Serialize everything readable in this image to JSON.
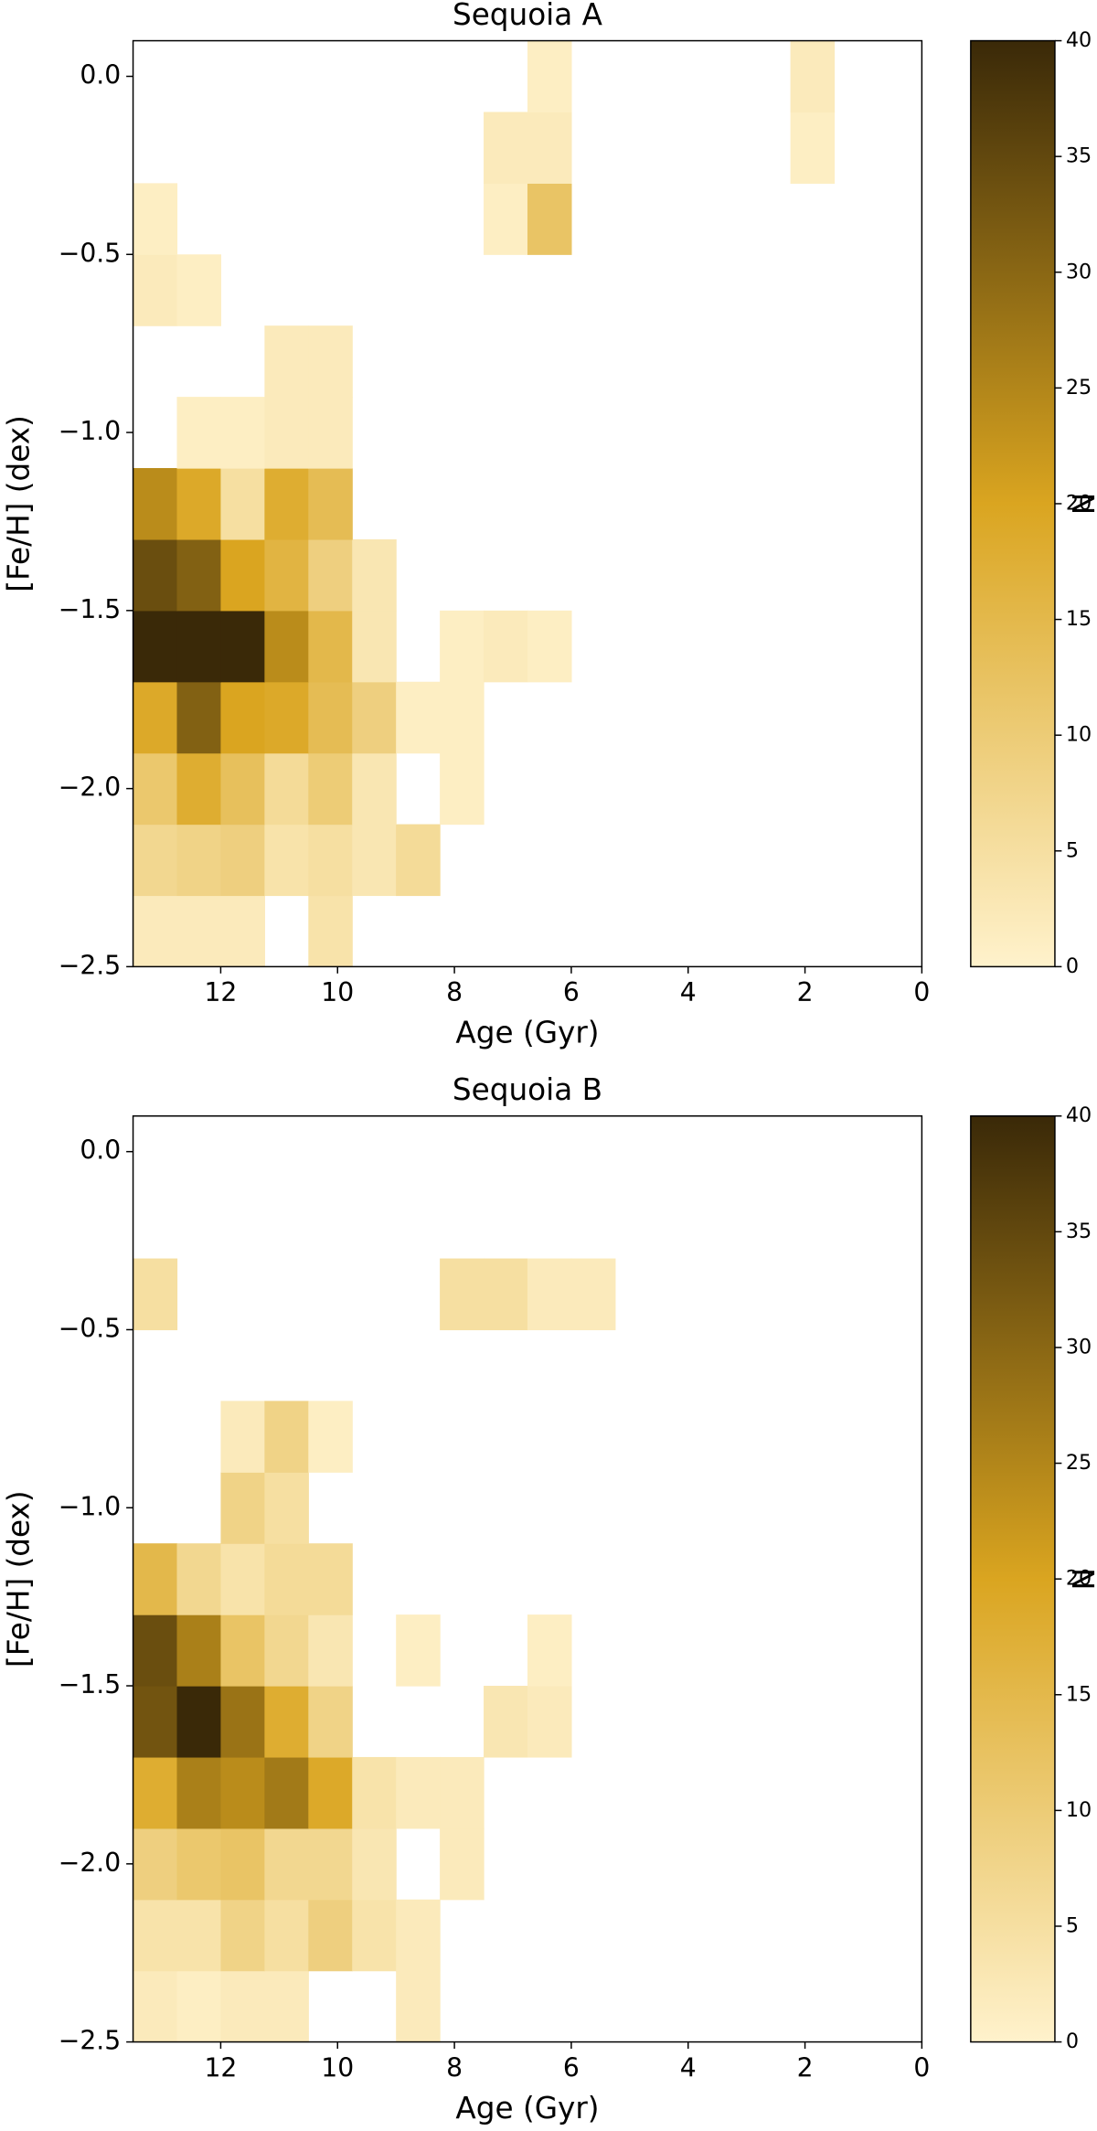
{
  "chart_data": [
    {
      "type": "heatmap",
      "title": "Sequoia A",
      "x_label": "Age (Gyr)",
      "y_label": "[Fe/H] (dex)",
      "colorbar_label": "N",
      "x_bins": [
        13.5,
        12.75,
        12,
        11.25,
        10.5,
        9.75,
        9,
        8.25,
        7.5,
        6.75,
        6,
        5.25,
        4.5,
        3.75,
        3,
        2.25,
        1.5,
        0.75,
        0
      ],
      "y_bins": [
        -2.5,
        -2.3,
        -2.1,
        -1.9,
        -1.7,
        -1.5,
        -1.3,
        -1.1,
        -0.9,
        -0.7,
        -0.5,
        -0.3,
        -0.1,
        0.1
      ],
      "z": [
        [
          2,
          2,
          2,
          0,
          4,
          0,
          0,
          0,
          0,
          0,
          0,
          0,
          0,
          0,
          0,
          0,
          0,
          0
        ],
        [
          7,
          8,
          9,
          4,
          5,
          3,
          6,
          0,
          0,
          0,
          0,
          0,
          0,
          0,
          0,
          0,
          0,
          0
        ],
        [
          11,
          18,
          13,
          6,
          10,
          3,
          0,
          1,
          0,
          0,
          0,
          0,
          0,
          0,
          0,
          0,
          0,
          0
        ],
        [
          19,
          31,
          20,
          19,
          14,
          9,
          1,
          1,
          0,
          0,
          0,
          0,
          0,
          0,
          0,
          0,
          0,
          0
        ],
        [
          40,
          40,
          40,
          24,
          15,
          3,
          0,
          1,
          2,
          1,
          0,
          0,
          0,
          0,
          0,
          0,
          0,
          0
        ],
        [
          34,
          31,
          20,
          16,
          9,
          3,
          0,
          0,
          0,
          0,
          0,
          0,
          0,
          0,
          0,
          0,
          0,
          0
        ],
        [
          24,
          19,
          5,
          18,
          14,
          0,
          0,
          0,
          0,
          0,
          0,
          0,
          0,
          0,
          0,
          0,
          0,
          0
        ],
        [
          0,
          1,
          1,
          2,
          2,
          0,
          0,
          0,
          0,
          0,
          0,
          0,
          0,
          0,
          0,
          0,
          0,
          0
        ],
        [
          0,
          0,
          0,
          2,
          2,
          0,
          0,
          0,
          0,
          0,
          0,
          0,
          0,
          0,
          0,
          0,
          0,
          0
        ],
        [
          2,
          1,
          0,
          0,
          0,
          0,
          0,
          0,
          0,
          0,
          0,
          0,
          0,
          0,
          0,
          0,
          0,
          0
        ],
        [
          1,
          0,
          0,
          0,
          0,
          0,
          0,
          0,
          1,
          12,
          0,
          0,
          0,
          0,
          0,
          0,
          0,
          0
        ],
        [
          0,
          0,
          0,
          0,
          0,
          0,
          0,
          0,
          2,
          2,
          0,
          0,
          0,
          0,
          0,
          1,
          0,
          0
        ],
        [
          0,
          0,
          0,
          0,
          0,
          0,
          0,
          0,
          0,
          1,
          0,
          0,
          0,
          0,
          0,
          2,
          0,
          0
        ]
      ],
      "xlim": [
        13.5,
        0
      ],
      "ylim": [
        -2.5,
        0.1
      ],
      "xticks": [
        12,
        10,
        8,
        6,
        4,
        2,
        0
      ],
      "yticks": [
        {
          "value": -2.5,
          "label": "−2.5"
        },
        {
          "value": -2,
          "label": "−2.0"
        },
        {
          "value": -1.5,
          "label": "−1.5"
        },
        {
          "value": -1,
          "label": "−1.0"
        },
        {
          "value": -0.5,
          "label": "−0.5"
        },
        {
          "value": 0,
          "label": "0.0"
        }
      ],
      "zlim": [
        0,
        40
      ],
      "zticks": [
        0,
        5,
        10,
        15,
        20,
        25,
        30,
        35,
        40
      ],
      "colorscale": [
        "#fff2cc",
        "#daa520",
        "#3a2908"
      ]
    },
    {
      "type": "heatmap",
      "title": "Sequoia B",
      "x_label": "Age (Gyr)",
      "y_label": "[Fe/H] (dex)",
      "colorbar_label": "N",
      "x_bins": [
        13.5,
        12.75,
        12,
        11.25,
        10.5,
        9.75,
        9,
        8.25,
        7.5,
        6.75,
        6,
        5.25,
        4.5,
        3.75,
        3,
        2.25,
        1.5,
        0.75,
        0
      ],
      "y_bins": [
        -2.5,
        -2.3,
        -2.1,
        -1.9,
        -1.7,
        -1.5,
        -1.3,
        -1.1,
        -0.9,
        -0.7,
        -0.5,
        -0.3,
        -0.1,
        0.1
      ],
      "z": [
        [
          2,
          1,
          2,
          2,
          0,
          0,
          2,
          0,
          0,
          0,
          0,
          0,
          0,
          0,
          0,
          0,
          0,
          0
        ],
        [
          4,
          4,
          8,
          5,
          9,
          4,
          2,
          0,
          0,
          0,
          0,
          0,
          0,
          0,
          0,
          0,
          0,
          0
        ],
        [
          9,
          11,
          12,
          7,
          7,
          3,
          0,
          2,
          0,
          0,
          0,
          0,
          0,
          0,
          0,
          0,
          0,
          0
        ],
        [
          18,
          26,
          24,
          27,
          19,
          4,
          2,
          2,
          0,
          0,
          0,
          0,
          0,
          0,
          0,
          0,
          0,
          0
        ],
        [
          33,
          40,
          28,
          18,
          8,
          0,
          0,
          0,
          3,
          2,
          0,
          0,
          0,
          0,
          0,
          0,
          0,
          0
        ],
        [
          34,
          26,
          12,
          7,
          3,
          0,
          1,
          0,
          0,
          1,
          0,
          0,
          0,
          0,
          0,
          0,
          0,
          0
        ],
        [
          15,
          7,
          4,
          6,
          6,
          0,
          0,
          0,
          0,
          0,
          0,
          0,
          0,
          0,
          0,
          0,
          0,
          0
        ],
        [
          0,
          0,
          8,
          5,
          0,
          0,
          0,
          0,
          0,
          0,
          0,
          0,
          0,
          0,
          0,
          0,
          0,
          0
        ],
        [
          0,
          0,
          2,
          8,
          1,
          0,
          0,
          0,
          0,
          0,
          0,
          0,
          0,
          0,
          0,
          0,
          0,
          0
        ],
        [
          0,
          0,
          0,
          0,
          0,
          0,
          0,
          0,
          0,
          0,
          0,
          0,
          0,
          0,
          0,
          0,
          0,
          0
        ],
        [
          5,
          0,
          0,
          0,
          0,
          0,
          0,
          5,
          5,
          2,
          2,
          0,
          0,
          0,
          0,
          0,
          0,
          0
        ],
        [
          0,
          0,
          0,
          0,
          0,
          0,
          0,
          0,
          0,
          0,
          0,
          0,
          0,
          0,
          0,
          0,
          0,
          0
        ],
        [
          0,
          0,
          0,
          0,
          0,
          0,
          0,
          0,
          0,
          0,
          0,
          0,
          0,
          0,
          0,
          0,
          0,
          0
        ]
      ],
      "xlim": [
        13.5,
        0
      ],
      "ylim": [
        -2.5,
        0.1
      ],
      "xticks": [
        12,
        10,
        8,
        6,
        4,
        2,
        0
      ],
      "yticks": [
        {
          "value": -2.5,
          "label": "−2.5"
        },
        {
          "value": -2,
          "label": "−2.0"
        },
        {
          "value": -1.5,
          "label": "−1.5"
        },
        {
          "value": -1,
          "label": "−1.0"
        },
        {
          "value": -0.5,
          "label": "−0.5"
        },
        {
          "value": 0,
          "label": "0.0"
        }
      ],
      "zlim": [
        0,
        40
      ],
      "zticks": [
        0,
        5,
        10,
        15,
        20,
        25,
        30,
        35,
        40
      ],
      "colorscale": [
        "#fff2cc",
        "#daa520",
        "#3a2908"
      ]
    }
  ]
}
